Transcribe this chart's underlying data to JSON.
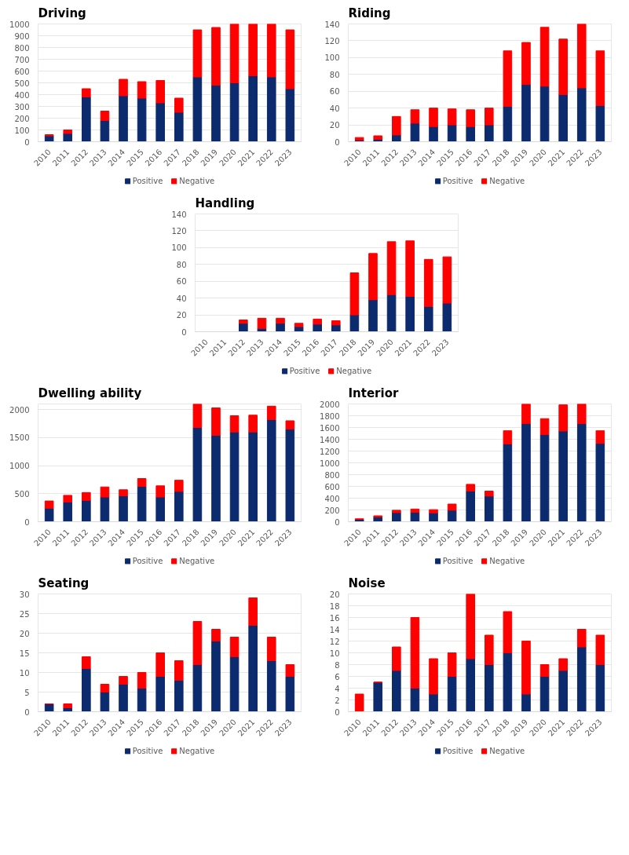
{
  "chart_data": [
    {
      "type": "bar",
      "title": "Driving",
      "stacked": true,
      "grid": "y",
      "legend": "bottom",
      "categories": [
        "2010",
        "2011",
        "2012",
        "2013",
        "2014",
        "2015",
        "2016",
        "2017",
        "2018",
        "2019",
        "2020",
        "2021",
        "2022",
        "2023"
      ],
      "ylim": [
        0,
        1000
      ],
      "yticks": [
        0,
        100,
        200,
        300,
        400,
        500,
        600,
        700,
        800,
        900,
        1000
      ],
      "series": [
        {
          "name": "Positive",
          "color": "#0c2a6e",
          "values": [
            50,
            70,
            380,
            180,
            390,
            370,
            330,
            250,
            550,
            480,
            500,
            560,
            550,
            450
          ]
        },
        {
          "name": "Negative",
          "color": "#ff0000",
          "values": [
            10,
            30,
            70,
            80,
            140,
            140,
            190,
            120,
            400,
            490,
            500,
            440,
            450,
            500
          ]
        }
      ]
    },
    {
      "type": "bar",
      "title": "Riding",
      "stacked": true,
      "grid": "y",
      "legend": "bottom",
      "categories": [
        "2010",
        "2011",
        "2012",
        "2013",
        "2014",
        "2015",
        "2016",
        "2017",
        "2018",
        "2019",
        "2020",
        "2021",
        "2022",
        "2023"
      ],
      "ylim": [
        0,
        140
      ],
      "yticks": [
        0,
        20,
        40,
        60,
        80,
        100,
        120,
        140
      ],
      "series": [
        {
          "name": "Positive",
          "color": "#0c2a6e",
          "values": [
            2,
            3,
            8,
            22,
            18,
            20,
            18,
            20,
            42,
            68,
            66,
            56,
            64,
            43
          ]
        },
        {
          "name": "Negative",
          "color": "#ff0000",
          "values": [
            3,
            4,
            22,
            16,
            22,
            19,
            20,
            20,
            66,
            50,
            70,
            66,
            76,
            65
          ]
        }
      ]
    },
    {
      "type": "bar",
      "title": "Handling",
      "stacked": true,
      "grid": "y",
      "legend": "bottom",
      "categories": [
        "2010",
        "2011",
        "2012",
        "2013",
        "2014",
        "2015",
        "2016",
        "2017",
        "2018",
        "2019",
        "2020",
        "2021",
        "2022",
        "2023"
      ],
      "ylim": [
        0,
        140
      ],
      "yticks": [
        0,
        20,
        40,
        60,
        80,
        100,
        120,
        140
      ],
      "series": [
        {
          "name": "Positive",
          "color": "#0c2a6e",
          "values": [
            0,
            0,
            10,
            4,
            10,
            6,
            9,
            8,
            20,
            38,
            44,
            42,
            30,
            34
          ]
        },
        {
          "name": "Negative",
          "color": "#ff0000",
          "values": [
            0,
            0,
            4,
            12,
            6,
            4,
            6,
            5,
            50,
            55,
            63,
            66,
            56,
            55
          ]
        }
      ]
    },
    {
      "type": "bar",
      "title": "Dwelling ability",
      "stacked": true,
      "grid": "y",
      "legend": "bottom",
      "categories": [
        "2010",
        "2011",
        "2012",
        "2013",
        "2014",
        "2015",
        "2016",
        "2017",
        "2018",
        "2019",
        "2020",
        "2021",
        "2022",
        "2023"
      ],
      "ylim": [
        0,
        2100
      ],
      "yticks": [
        0,
        500,
        1000,
        1500,
        2000
      ],
      "series": [
        {
          "name": "Positive",
          "color": "#0c2a6e",
          "values": [
            240,
            350,
            380,
            440,
            460,
            630,
            440,
            540,
            1680,
            1540,
            1600,
            1600,
            1820,
            1650
          ]
        },
        {
          "name": "Negative",
          "color": "#ff0000",
          "values": [
            130,
            120,
            140,
            180,
            110,
            140,
            200,
            200,
            420,
            490,
            290,
            300,
            240,
            150
          ]
        }
      ]
    },
    {
      "type": "bar",
      "title": "Interior",
      "stacked": true,
      "grid": "y",
      "legend": "bottom",
      "categories": [
        "2010",
        "2011",
        "2012",
        "2013",
        "2014",
        "2015",
        "2016",
        "2017",
        "2018",
        "2019",
        "2020",
        "2021",
        "2022",
        "2023"
      ],
      "ylim": [
        0,
        2000
      ],
      "yticks": [
        0,
        200,
        400,
        600,
        800,
        1000,
        1200,
        1400,
        1600,
        1800,
        2000
      ],
      "series": [
        {
          "name": "Positive",
          "color": "#0c2a6e",
          "values": [
            40,
            80,
            155,
            160,
            150,
            195,
            520,
            435,
            1320,
            1665,
            1480,
            1540,
            1665,
            1330
          ]
        },
        {
          "name": "Negative",
          "color": "#ff0000",
          "values": [
            10,
            20,
            40,
            55,
            55,
            105,
            115,
            85,
            225,
            335,
            270,
            445,
            335,
            215
          ]
        }
      ]
    },
    {
      "type": "bar",
      "title": "Seating",
      "stacked": true,
      "grid": "y",
      "legend": "bottom",
      "categories": [
        "2010",
        "2011",
        "2012",
        "2013",
        "2014",
        "2015",
        "2016",
        "2017",
        "2018",
        "2019",
        "2020",
        "2021",
        "2022",
        "2023"
      ],
      "ylim": [
        0,
        30
      ],
      "yticks": [
        0,
        5,
        10,
        15,
        20,
        25,
        30
      ],
      "series": [
        {
          "name": "Positive",
          "color": "#0c2a6e",
          "values": [
            2,
            1,
            11,
            5,
            7,
            6,
            9,
            8,
            12,
            18,
            14,
            22,
            13,
            9
          ]
        },
        {
          "name": "Negative",
          "color": "#ff0000",
          "values": [
            0,
            1,
            3,
            2,
            2,
            4,
            6,
            5,
            11,
            3,
            5,
            7,
            6,
            3
          ]
        }
      ]
    },
    {
      "type": "bar",
      "title": "Noise",
      "stacked": true,
      "grid": "y",
      "legend": "bottom",
      "categories": [
        "2010",
        "2011",
        "2012",
        "2013",
        "2014",
        "2015",
        "2016",
        "2017",
        "2018",
        "2019",
        "2020",
        "2021",
        "2022",
        "2023"
      ],
      "ylim": [
        0,
        20
      ],
      "yticks": [
        0,
        2,
        4,
        6,
        8,
        10,
        12,
        14,
        16,
        18,
        20
      ],
      "series": [
        {
          "name": "Positive",
          "color": "#0c2a6e",
          "values": [
            0,
            5,
            7,
            4,
            3,
            6,
            9,
            8,
            10,
            3,
            6,
            7,
            11,
            8
          ]
        },
        {
          "name": "Negative",
          "color": "#ff0000",
          "values": [
            3,
            0,
            4,
            12,
            6,
            4,
            11,
            5,
            7,
            9,
            2,
            2,
            3,
            5
          ]
        }
      ]
    }
  ]
}
